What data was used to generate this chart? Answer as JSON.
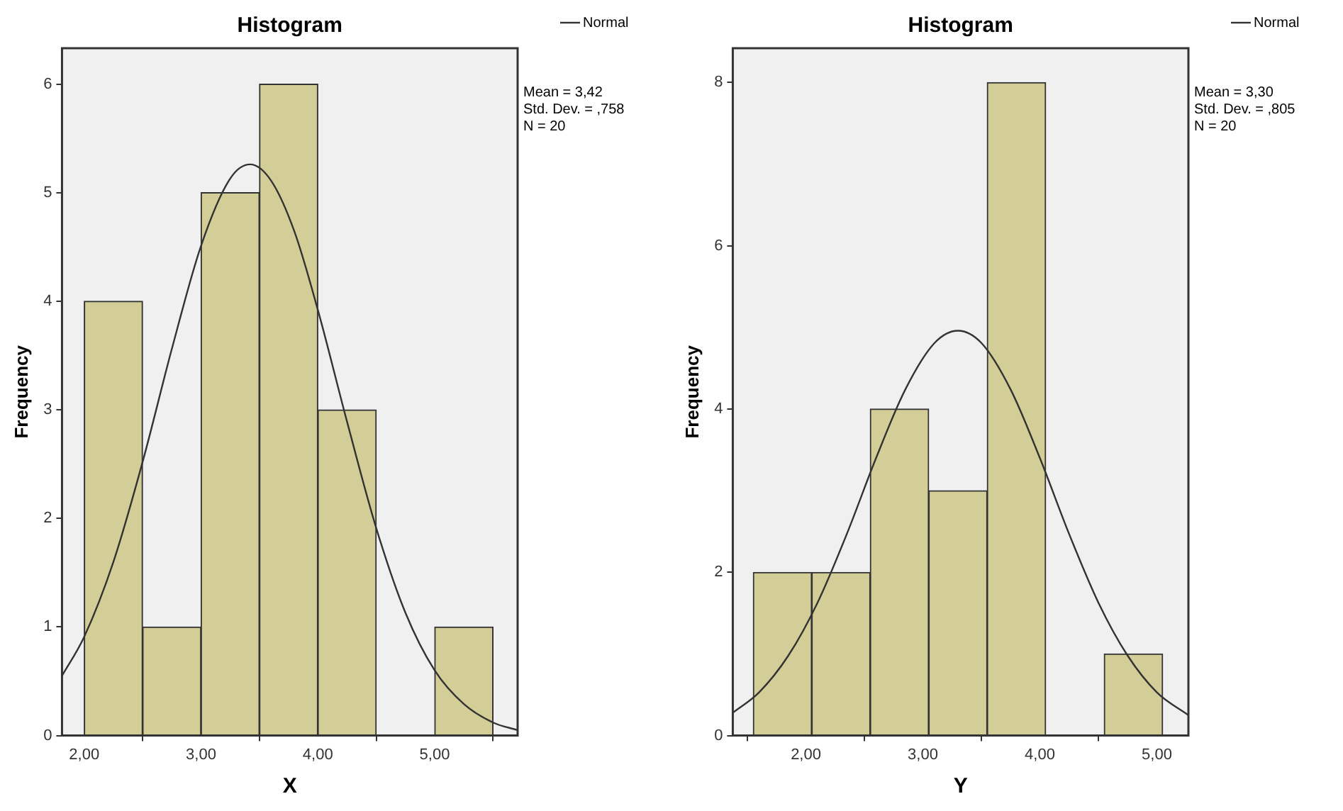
{
  "chart_data": [
    {
      "type": "histogram",
      "title": "Histogram",
      "xlabel": "X",
      "ylabel": "Frequency",
      "legend": "top right",
      "grid": false,
      "marker": "none",
      "line_style": "solid",
      "xlim": [
        1.81,
        5.71
      ],
      "ylim": [
        0,
        6.33
      ],
      "xticks": [
        {
          "value": 2,
          "label": "2,00"
        },
        {
          "value": 3,
          "label": "3,00"
        },
        {
          "value": 4,
          "label": "4,00"
        },
        {
          "value": 5,
          "label": "5,00"
        }
      ],
      "yticks": [
        0,
        1,
        2,
        3,
        4,
        5,
        6
      ],
      "series": [
        {
          "color": "#d3ce97",
          "bins": [
            2.0,
            2.5,
            3.0,
            3.5,
            4.0,
            4.5,
            5.0,
            5.5
          ],
          "values": [
            4,
            1,
            5,
            6,
            3,
            0,
            1
          ]
        },
        {
          "type": "line",
          "name": "Normal",
          "color": "#333333",
          "x": [
            1.81,
            2.0,
            2.25,
            2.5,
            2.75,
            3.0,
            3.25,
            3.42,
            3.6,
            3.8,
            4.0,
            4.25,
            4.5,
            4.75,
            5.0,
            5.25,
            5.5,
            5.71
          ],
          "values": [
            0.55,
            0.91,
            1.6,
            2.52,
            3.56,
            4.51,
            5.13,
            5.26,
            5.11,
            4.64,
            3.92,
            2.89,
            1.91,
            1.13,
            0.6,
            0.29,
            0.12,
            0.05
          ]
        }
      ],
      "annotations": [
        "Mean = 3,42",
        "Std. Dev. = ,758",
        "N = 20"
      ]
    },
    {
      "type": "histogram",
      "title": "Histogram",
      "xlabel": "Y",
      "ylabel": "Frequency",
      "legend": "top right",
      "grid": false,
      "marker": "none",
      "line_style": "solid",
      "xlim": [
        1.375,
        5.27
      ],
      "ylim": [
        0,
        8.42
      ],
      "xticks": [
        {
          "value": 2,
          "label": "2,00"
        },
        {
          "value": 3,
          "label": "3,00"
        },
        {
          "value": 4,
          "label": "4,00"
        },
        {
          "value": 5,
          "label": "5,00"
        }
      ],
      "yticks": [
        0,
        2,
        4,
        6,
        8
      ],
      "series": [
        {
          "color": "#d3ce97",
          "bins": [
            1.55,
            2.05,
            2.55,
            3.05,
            3.55,
            4.05,
            4.55,
            5.05
          ],
          "values": [
            2,
            2,
            4,
            3,
            8,
            0,
            1
          ]
        },
        {
          "type": "line",
          "name": "Normal",
          "color": "#333333",
          "x": [
            1.375,
            1.6,
            1.85,
            2.1,
            2.35,
            2.6,
            2.85,
            3.1,
            3.3,
            3.5,
            3.75,
            4.0,
            4.25,
            4.5,
            4.75,
            5.0,
            5.27
          ],
          "values": [
            0.28,
            0.53,
            0.98,
            1.63,
            2.47,
            3.4,
            4.24,
            4.81,
            4.96,
            4.81,
            4.24,
            3.4,
            2.47,
            1.63,
            0.98,
            0.53,
            0.25
          ]
        }
      ],
      "annotations": [
        "Mean = 3,30",
        "Std. Dev. = ,805",
        "N = 20"
      ]
    }
  ]
}
